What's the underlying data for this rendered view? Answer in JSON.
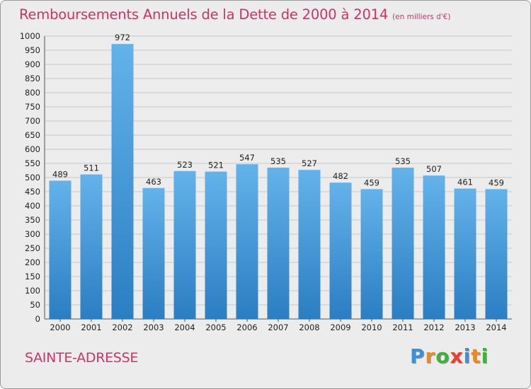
{
  "header": {
    "title": "Remboursements Annuels de la Dette de 2000 à 2014",
    "subtitle": "(en milliers d'€)"
  },
  "footer": {
    "commune": "SAINTE-ADRESSE",
    "logo": {
      "text": "Proxiti",
      "letter_colors": [
        "#3d8fd6",
        "#e8892a",
        "#3db03d",
        "#ea3f30",
        "#3d8fd6",
        "#e8892a",
        "#3db03d"
      ]
    }
  },
  "colors": {
    "title": "#cc3366",
    "bar_light": "#64b2ea",
    "bar_dark": "#2a7ec2",
    "background": "#ececec",
    "grid": "#c8c8c8"
  },
  "chart_data": {
    "type": "bar",
    "title": "Remboursements Annuels de la Dette de 2000 à 2014",
    "subtitle": "(en milliers d'€)",
    "xlabel": "",
    "ylabel": "",
    "categories": [
      "2000",
      "2001",
      "2002",
      "2003",
      "2004",
      "2005",
      "2006",
      "2007",
      "2008",
      "2009",
      "2010",
      "2011",
      "2012",
      "2013",
      "2014"
    ],
    "values": [
      489,
      511,
      972,
      463,
      523,
      521,
      547,
      535,
      527,
      482,
      459,
      535,
      507,
      461,
      459
    ],
    "ylim": [
      0,
      1000
    ],
    "yticks": [
      0,
      50,
      100,
      150,
      200,
      250,
      300,
      350,
      400,
      450,
      500,
      550,
      600,
      650,
      700,
      750,
      800,
      850,
      900,
      950,
      1000
    ],
    "grid": true,
    "data_labels": true
  }
}
